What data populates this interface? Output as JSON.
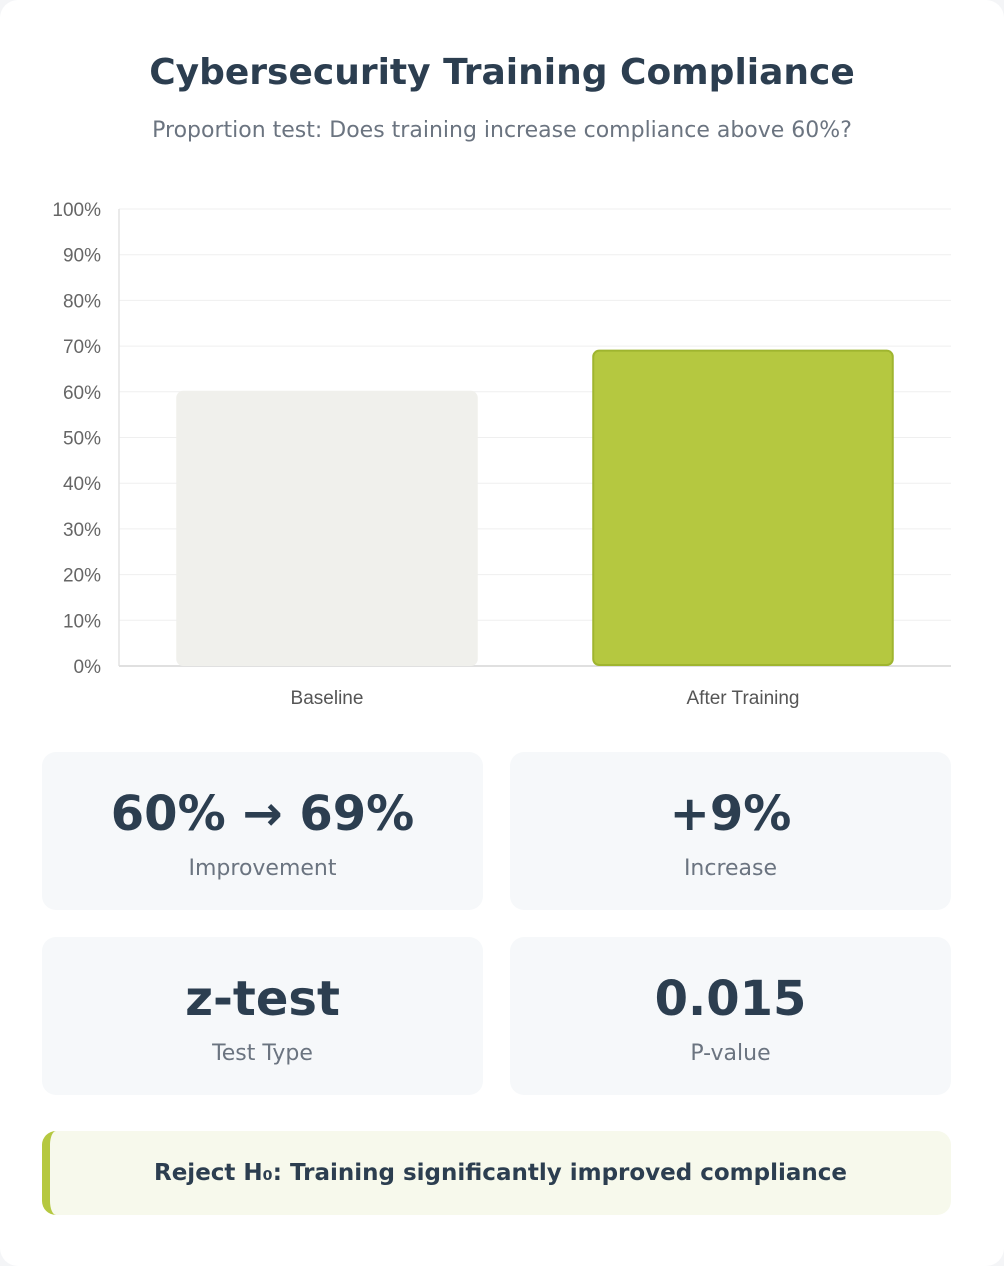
{
  "header": {
    "title": "Cybersecurity Training Compliance",
    "subtitle": "Proportion test: Does training increase compliance above 60%?"
  },
  "chart_data": {
    "type": "bar",
    "categories": [
      "Baseline",
      "After Training"
    ],
    "values": [
      60,
      69
    ],
    "ylim": [
      0,
      100
    ],
    "yticks": [
      "0%",
      "10%",
      "20%",
      "30%",
      "40%",
      "50%",
      "60%",
      "70%",
      "80%",
      "90%",
      "100%"
    ],
    "grid": true,
    "bar_colors": [
      "#f0f0ec",
      "#b5c840"
    ],
    "bar_border_colors": [
      "#f0f0ec",
      "#9fb52f"
    ]
  },
  "stats": [
    {
      "value": "60% → 69%",
      "label": "Improvement"
    },
    {
      "value": "+9%",
      "label": "Increase"
    },
    {
      "value": "z-test",
      "label": "Test Type"
    },
    {
      "value": "0.015",
      "label": "P-value"
    }
  ],
  "conclusion": {
    "text": "Reject H₀: Training significantly improved compliance"
  },
  "colors": {
    "accent": "#b5c840",
    "text_dark": "#2c3e50",
    "text_muted": "#6b7480",
    "box_bg": "#f6f8fa",
    "conclusion_bg": "#f7f9ec"
  }
}
